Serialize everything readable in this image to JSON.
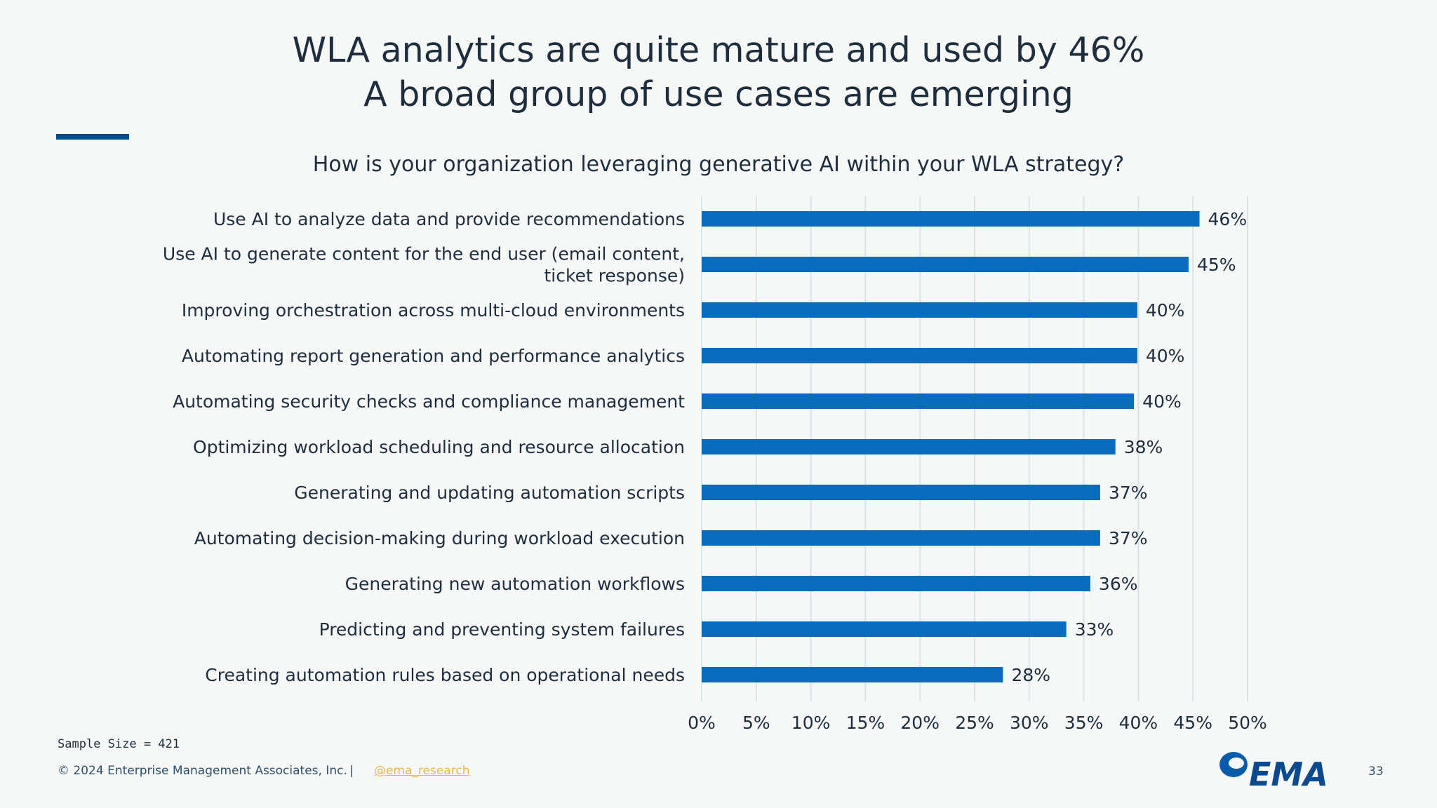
{
  "slide": {
    "title_line1": "WLA analytics are quite mature and used by 46%",
    "title_line2": "A broad group of use cases are emerging",
    "question": "How is your organization leveraging generative AI within your WLA strategy?",
    "accent_color": "#0b4a80"
  },
  "footer": {
    "sample_size": "Sample Size = 421",
    "copyright": "© 2024 Enterprise Management Associates, Inc.",
    "separator": "|",
    "handle": "@ema_research",
    "logo_text": "EMA",
    "page_number": "33"
  },
  "chart_data": {
    "type": "bar",
    "orientation": "horizontal",
    "bar_color": "#0a6cbf",
    "xlim": [
      0,
      50
    ],
    "x_ticks": [
      "0%",
      "5%",
      "10%",
      "15%",
      "20%",
      "25%",
      "30%",
      "35%",
      "40%",
      "45%",
      "50%"
    ],
    "grid": true,
    "categories": [
      [
        "Use AI to analyze data and provide recommendations"
      ],
      [
        "Use AI to generate content for the end user (email content,",
        "ticket response)"
      ],
      [
        "Improving orchestration across multi-cloud environments"
      ],
      [
        "Automating report generation and performance analytics"
      ],
      [
        "Automating security checks and compliance management"
      ],
      [
        "Optimizing workload scheduling and resource allocation"
      ],
      [
        "Generating and updating automation scripts"
      ],
      [
        "Automating decision-making during workload execution"
      ],
      [
        "Generating new automation workflows"
      ],
      [
        "Predicting and preventing system failures"
      ],
      [
        "Creating automation rules based on operational needs"
      ]
    ],
    "values": [
      45.6,
      44.6,
      39.9,
      39.9,
      39.6,
      37.9,
      36.5,
      36.5,
      35.6,
      33.4,
      27.6
    ],
    "data_labels": [
      "46%",
      "45%",
      "40%",
      "40%",
      "40%",
      "38%",
      "37%",
      "37%",
      "36%",
      "33%",
      "28%"
    ]
  }
}
